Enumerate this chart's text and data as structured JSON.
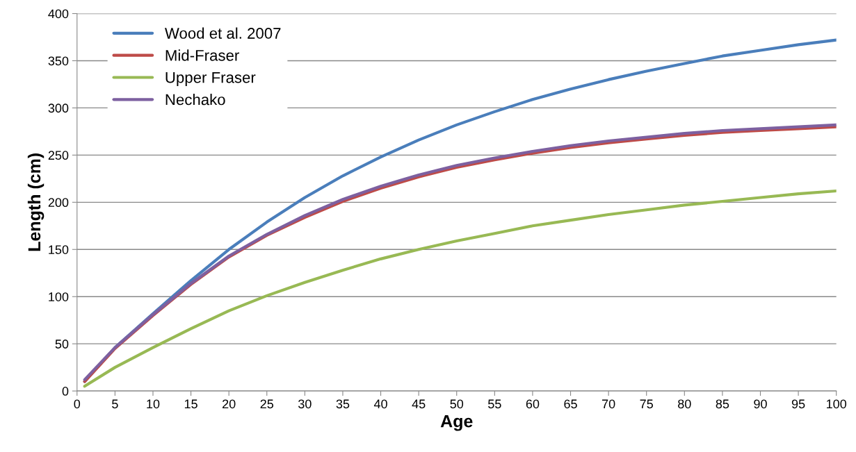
{
  "chart_data": {
    "type": "line",
    "xlabel": "Age",
    "ylabel": "Length (cm)",
    "xlim": [
      0,
      100
    ],
    "xticks": [
      0,
      5,
      10,
      15,
      20,
      25,
      30,
      35,
      40,
      45,
      50,
      55,
      60,
      65,
      70,
      75,
      80,
      85,
      90,
      95,
      100
    ],
    "ylim": [
      0,
      400
    ],
    "yticks": [
      0,
      50,
      100,
      150,
      200,
      250,
      300,
      350,
      400
    ],
    "grid": "y",
    "legend": "top left",
    "marker": "none",
    "line_style": "solid",
    "x": [
      1,
      5,
      10,
      15,
      20,
      25,
      30,
      35,
      40,
      45,
      50,
      55,
      60,
      65,
      70,
      75,
      80,
      85,
      90,
      95,
      100
    ],
    "series": [
      {
        "name": "Wood et al. 2007",
        "color": "#4a7ebb",
        "values": [
          10,
          46,
          82,
          117,
          150,
          179,
          205,
          228,
          248,
          266,
          282,
          296,
          309,
          320,
          330,
          339,
          347,
          355,
          361,
          367,
          372
        ]
      },
      {
        "name": "Mid-Fraser",
        "color": "#be4b48",
        "values": [
          10,
          45,
          80,
          113,
          142,
          165,
          184,
          201,
          215,
          227,
          237,
          245,
          252,
          258,
          263,
          267,
          271,
          274,
          276,
          278,
          280
        ]
      },
      {
        "name": "Upper Fraser",
        "color": "#98b954",
        "values": [
          5,
          25,
          46,
          66,
          85,
          101,
          115,
          128,
          140,
          150,
          159,
          167,
          175,
          181,
          187,
          192,
          197,
          201,
          205,
          209,
          212
        ]
      },
      {
        "name": "Nechako",
        "color": "#7d60a0",
        "values": [
          12,
          46,
          81,
          114,
          143,
          166,
          186,
          203,
          217,
          229,
          239,
          247,
          254,
          260,
          265,
          269,
          273,
          276,
          278,
          280,
          282
        ]
      }
    ]
  }
}
